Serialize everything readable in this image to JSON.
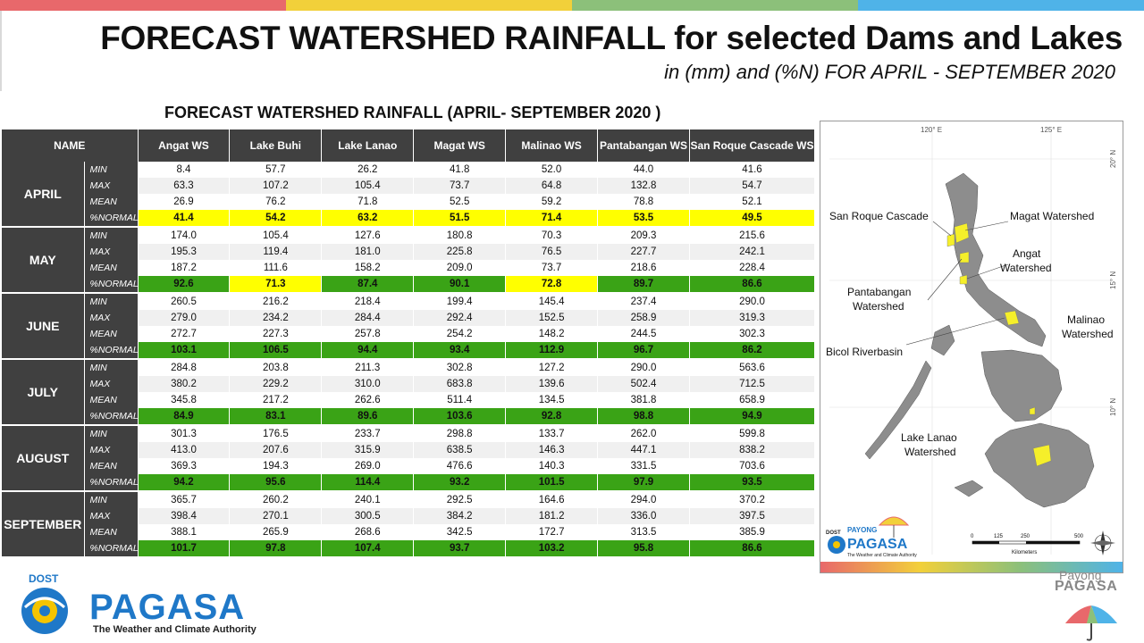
{
  "header": {
    "title": "FORECAST WATERSHED RAINFALL  for selected Dams and Lakes",
    "subtitle": "in (mm) and (%N) FOR APRIL - SEPTEMBER 2020",
    "bar_colors": [
      "#e8686b",
      "#f2d03a",
      "#8cc07a",
      "#4fb3e8"
    ]
  },
  "table": {
    "title": "FORECAST WATERSHED RAINFALL (APRIL- SEPTEMBER 2020 )",
    "name_header": "NAME",
    "columns": [
      "Angat WS",
      "Lake Buhi",
      "Lake Lanao",
      "Magat WS",
      "Malinao WS",
      "Pantabangan WS",
      "San Roque Cascade WS"
    ],
    "stat_labels": [
      "MIN",
      "MAX",
      "MEAN",
      "%NORMAL"
    ],
    "colors": {
      "yellow": "#ffff00",
      "green": "#3aa316",
      "header": "#404040"
    },
    "months": [
      {
        "name": "APRIL",
        "min": [
          "8.4",
          "57.7",
          "26.2",
          "41.8",
          "52.0",
          "44.0",
          "41.6"
        ],
        "max": [
          "63.3",
          "107.2",
          "105.4",
          "73.7",
          "64.8",
          "132.8",
          "54.7"
        ],
        "mean": [
          "26.9",
          "76.2",
          "71.8",
          "52.5",
          "59.2",
          "78.8",
          "52.1"
        ],
        "normal": [
          "41.4",
          "54.2",
          "63.2",
          "51.5",
          "71.4",
          "53.5",
          "49.5"
        ],
        "normal_colors": [
          "yellow",
          "yellow",
          "yellow",
          "yellow",
          "yellow",
          "yellow",
          "yellow"
        ]
      },
      {
        "name": "MAY",
        "min": [
          "174.0",
          "105.4",
          "127.6",
          "180.8",
          "70.3",
          "209.3",
          "215.6"
        ],
        "max": [
          "195.3",
          "119.4",
          "181.0",
          "225.8",
          "76.5",
          "227.7",
          "242.1"
        ],
        "mean": [
          "187.2",
          "111.6",
          "158.2",
          "209.0",
          "73.7",
          "218.6",
          "228.4"
        ],
        "normal": [
          "92.6",
          "71.3",
          "87.4",
          "90.1",
          "72.8",
          "89.7",
          "86.6"
        ],
        "normal_colors": [
          "green",
          "yellow",
          "green",
          "green",
          "yellow",
          "green",
          "green"
        ]
      },
      {
        "name": "JUNE",
        "min": [
          "260.5",
          "216.2",
          "218.4",
          "199.4",
          "145.4",
          "237.4",
          "290.0"
        ],
        "max": [
          "279.0",
          "234.2",
          "284.4",
          "292.4",
          "152.5",
          "258.9",
          "319.3"
        ],
        "mean": [
          "272.7",
          "227.3",
          "257.8",
          "254.2",
          "148.2",
          "244.5",
          "302.3"
        ],
        "normal": [
          "103.1",
          "106.5",
          "94.4",
          "93.4",
          "112.9",
          "96.7",
          "86.2"
        ],
        "normal_colors": [
          "green",
          "green",
          "green",
          "green",
          "green",
          "green",
          "green"
        ]
      },
      {
        "name": "JULY",
        "min": [
          "284.8",
          "203.8",
          "211.3",
          "302.8",
          "127.2",
          "290.0",
          "563.6"
        ],
        "max": [
          "380.2",
          "229.2",
          "310.0",
          "683.8",
          "139.6",
          "502.4",
          "712.5"
        ],
        "mean": [
          "345.8",
          "217.2",
          "262.6",
          "511.4",
          "134.5",
          "381.8",
          "658.9"
        ],
        "normal": [
          "84.9",
          "83.1",
          "89.6",
          "103.6",
          "92.8",
          "98.8",
          "94.9"
        ],
        "normal_colors": [
          "green",
          "green",
          "green",
          "green",
          "green",
          "green",
          "green"
        ]
      },
      {
        "name": "AUGUST",
        "min": [
          "301.3",
          "176.5",
          "233.7",
          "298.8",
          "133.7",
          "262.0",
          "599.8"
        ],
        "max": [
          "413.0",
          "207.6",
          "315.9",
          "638.5",
          "146.3",
          "447.1",
          "838.2"
        ],
        "mean": [
          "369.3",
          "194.3",
          "269.0",
          "476.6",
          "140.3",
          "331.5",
          "703.6"
        ],
        "normal": [
          "94.2",
          "95.6",
          "114.4",
          "93.2",
          "101.5",
          "97.9",
          "93.5"
        ],
        "normal_colors": [
          "green",
          "green",
          "green",
          "green",
          "green",
          "green",
          "green"
        ]
      },
      {
        "name": "SEPTEMBER",
        "min": [
          "365.7",
          "260.2",
          "240.1",
          "292.5",
          "164.6",
          "294.0",
          "370.2"
        ],
        "max": [
          "398.4",
          "270.1",
          "300.5",
          "384.2",
          "181.2",
          "336.0",
          "397.5"
        ],
        "mean": [
          "388.1",
          "265.9",
          "268.6",
          "342.5",
          "172.7",
          "313.5",
          "385.9"
        ],
        "normal": [
          "101.7",
          "97.8",
          "107.4",
          "93.7",
          "103.2",
          "95.8",
          "86.6"
        ],
        "normal_colors": [
          "green",
          "green",
          "green",
          "green",
          "green",
          "green",
          "green"
        ]
      }
    ]
  },
  "map": {
    "lon_labels": [
      "120° E",
      "125° E"
    ],
    "lat_labels": [
      "20° N",
      "15° N",
      "10° N"
    ],
    "labels": {
      "san_roque": "San Roque Cascade",
      "magat": "Magat Watershed",
      "angat_1": "Angat",
      "angat_2": "Watershed",
      "pantabangan_1": "Pantabangan",
      "pantabangan_2": "Watershed",
      "malinao_1": "Malinao",
      "malinao_2": "Watershed",
      "bicol": "Bicol Riverbasin",
      "lanao_1": "Lake Lanao",
      "lanao_2": "Watershed"
    },
    "scale_ticks": [
      "0",
      "125",
      "250",
      "500"
    ],
    "scale_unit": "Kilometers",
    "logo_dost": "DOST",
    "logo_payong": "PAYONG",
    "logo_pagasa": "PAGASA",
    "logo_tagline": "The Weather and Climate Authority"
  },
  "footer": {
    "dost": "DOST",
    "pagasa": "PAGASA",
    "tagline": "The Weather and Climate Authority",
    "payong": "Payong",
    "payong_pagasa": "PAGASA"
  }
}
